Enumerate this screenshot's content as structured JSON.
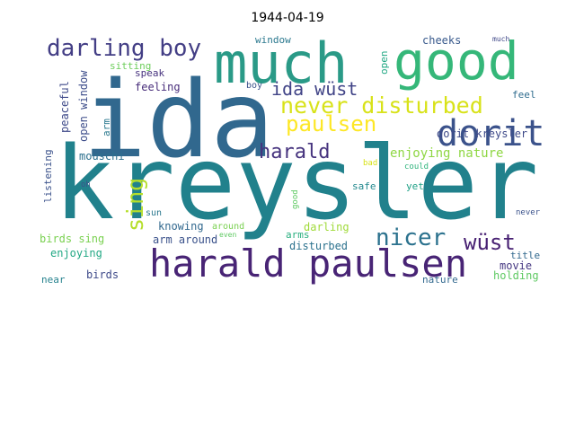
{
  "title": "1944-04-19",
  "chart_data": {
    "type": "wordcloud",
    "title": "1944-04-19",
    "words": [
      {
        "text": "ida",
        "color": "#31688e"
      },
      {
        "text": "kreysler",
        "color": "#21818c"
      },
      {
        "text": "much",
        "color": "#2a9a87"
      },
      {
        "text": "good",
        "color": "#35b779"
      },
      {
        "text": "harald paulsen",
        "color": "#482475"
      },
      {
        "text": "dorit",
        "color": "#3b528b"
      },
      {
        "text": "darling boy",
        "color": "#433e85"
      },
      {
        "text": "never disturbed",
        "color": "#d8e219"
      },
      {
        "text": "paulsen",
        "color": "#fde725"
      },
      {
        "text": "ida wüst",
        "color": "#414487"
      },
      {
        "text": "harald",
        "color": "#46337e"
      },
      {
        "text": "nicer",
        "color": "#2c728e"
      },
      {
        "text": "wüst",
        "color": "#482173"
      },
      {
        "text": "sing",
        "color": "#b5de2b"
      },
      {
        "text": "enjoying nature",
        "color": "#8fd744"
      },
      {
        "text": "dorit kreysler",
        "color": "#3e4a89"
      },
      {
        "text": "cheeks",
        "color": "#38598c"
      },
      {
        "text": "much",
        "color": "#3f4788"
      },
      {
        "text": "window",
        "color": "#2a788e"
      },
      {
        "text": "sitting",
        "color": "#6ccd5a"
      },
      {
        "text": "speak",
        "color": "#46327e"
      },
      {
        "text": "feeling",
        "color": "#472c7a"
      },
      {
        "text": "boy",
        "color": "#3b528b"
      },
      {
        "text": "open",
        "color": "#22a884"
      },
      {
        "text": "feel",
        "color": "#2f6c8e"
      },
      {
        "text": "peaceful",
        "color": "#3e4989"
      },
      {
        "text": "open window",
        "color": "#3d4d8a"
      },
      {
        "text": "arm",
        "color": "#2a788e"
      },
      {
        "text": "listening",
        "color": "#3b528b"
      },
      {
        "text": "mouschi",
        "color": "#2d708e"
      },
      {
        "text": "oh",
        "color": "#3b528b"
      },
      {
        "text": "bad",
        "color": "#d8e219"
      },
      {
        "text": "could",
        "color": "#2fb47c"
      },
      {
        "text": "safe",
        "color": "#23898e"
      },
      {
        "text": "yet",
        "color": "#1fa187"
      },
      {
        "text": "good",
        "color": "#5ec962"
      },
      {
        "text": "sun",
        "color": "#2a788e"
      },
      {
        "text": "never",
        "color": "#3b528b"
      },
      {
        "text": "knowing",
        "color": "#31688e"
      },
      {
        "text": "around",
        "color": "#7ad151"
      },
      {
        "text": "even",
        "color": "#5ec962"
      },
      {
        "text": "darling",
        "color": "#a0da39"
      },
      {
        "text": "birds sing",
        "color": "#7ad151"
      },
      {
        "text": "arm around",
        "color": "#3b528b"
      },
      {
        "text": "arms",
        "color": "#29af7f"
      },
      {
        "text": "enjoying",
        "color": "#22a884"
      },
      {
        "text": "disturbed",
        "color": "#2c728e"
      },
      {
        "text": "title",
        "color": "#31688e"
      },
      {
        "text": "movie",
        "color": "#453781"
      },
      {
        "text": "near",
        "color": "#26828e"
      },
      {
        "text": "birds",
        "color": "#3e4a89"
      },
      {
        "text": "nature",
        "color": "#31688e"
      },
      {
        "text": "holding",
        "color": "#5ec962"
      }
    ]
  }
}
